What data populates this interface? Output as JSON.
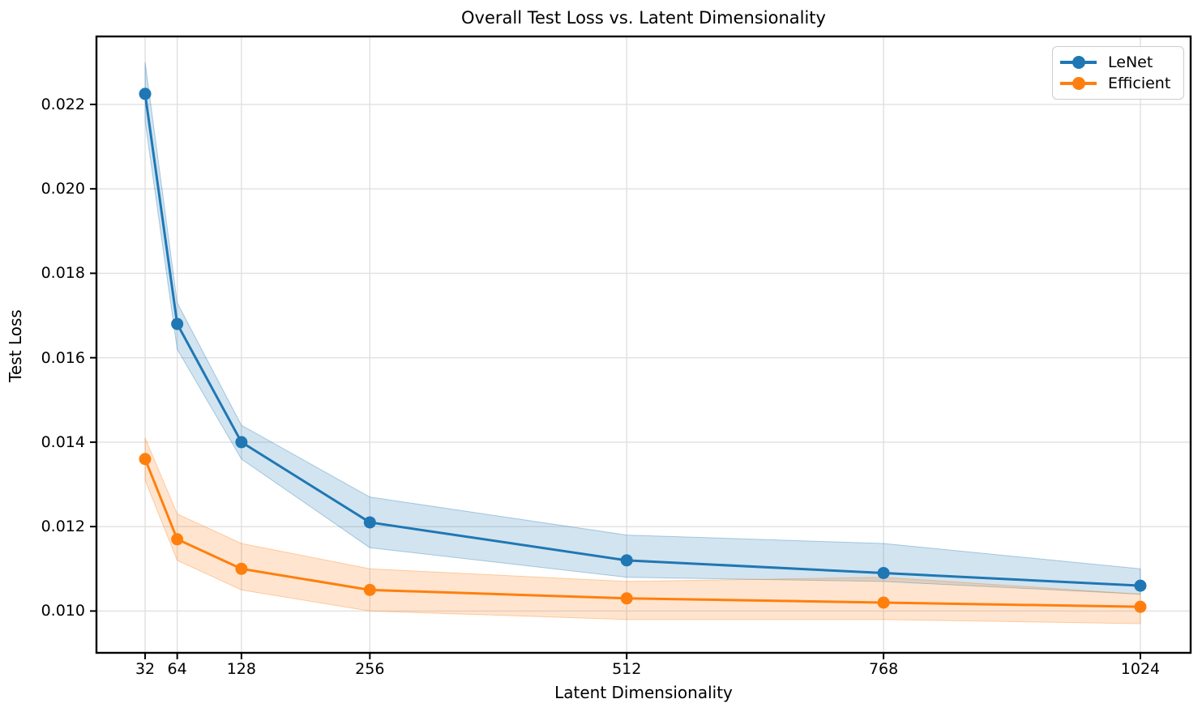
{
  "chart_data": {
    "type": "line",
    "title": "Overall Test Loss vs. Latent Dimensionality",
    "xlabel": "Latent Dimensionality",
    "ylabel": "Test Loss",
    "x": [
      32,
      64,
      128,
      256,
      512,
      768,
      1024
    ],
    "series": [
      {
        "name": "LeNet",
        "color": "#1f77b4",
        "values": [
          0.02225,
          0.0168,
          0.014,
          0.0121,
          0.0112,
          0.0109,
          0.0106
        ],
        "band_upper": [
          0.023,
          0.0173,
          0.0144,
          0.0127,
          0.0118,
          0.0116,
          0.011
        ],
        "band_lower": [
          0.0216,
          0.0162,
          0.0136,
          0.0115,
          0.0108,
          0.0107,
          0.0104
        ]
      },
      {
        "name": "Efficient",
        "color": "#ff7f0e",
        "values": [
          0.0136,
          0.0117,
          0.011,
          0.0105,
          0.0103,
          0.0102,
          0.0101
        ],
        "band_upper": [
          0.0141,
          0.0123,
          0.0116,
          0.011,
          0.0107,
          0.0108,
          0.0104
        ],
        "band_lower": [
          0.0131,
          0.0112,
          0.0105,
          0.01,
          0.0098,
          0.0098,
          0.0097
        ]
      }
    ],
    "xticks": {
      "values": [
        32,
        64,
        128,
        256,
        512,
        768,
        1024
      ],
      "labels": [
        "32",
        "64",
        "128",
        "256",
        "512",
        "768",
        "1024"
      ]
    },
    "yticks": {
      "values": [
        0.01,
        0.012,
        0.014,
        0.016,
        0.018,
        0.02,
        0.022
      ],
      "labels": [
        "0.010",
        "0.012",
        "0.014",
        "0.016",
        "0.018",
        "0.020",
        "0.022"
      ]
    },
    "xlim": [
      -16.5,
      1074.1
    ],
    "ylim": [
      0.00901,
      0.02361
    ],
    "grid": true,
    "legend_position": "upper right",
    "band_alpha": 0.2,
    "grid_color": "#e0e0e0",
    "axis_color": "#000000",
    "background": "#ffffff"
  }
}
